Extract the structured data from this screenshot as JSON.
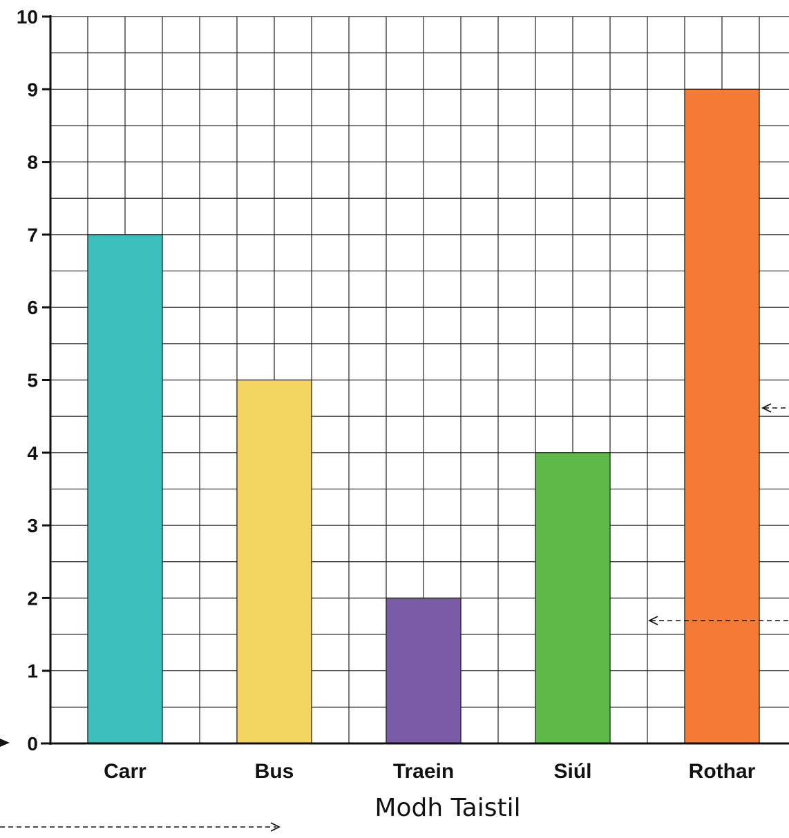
{
  "chart_data": {
    "type": "bar",
    "categories": [
      "Carr",
      "Bus",
      "Traein",
      "Siúl",
      "Rothar"
    ],
    "values": [
      7,
      5,
      2,
      4,
      9
    ],
    "colors": [
      "#3dbfbd",
      "#f4d562",
      "#7a5ba8",
      "#5fb84a",
      "#f47a35"
    ],
    "title": "",
    "xlabel": "Modh Taistil",
    "ylabel": "",
    "ylim": [
      0,
      10
    ],
    "yticks": [
      0,
      1,
      2,
      3,
      4,
      5,
      6,
      7,
      8,
      9,
      10
    ],
    "grid": true,
    "minor_divisions": 2
  }
}
